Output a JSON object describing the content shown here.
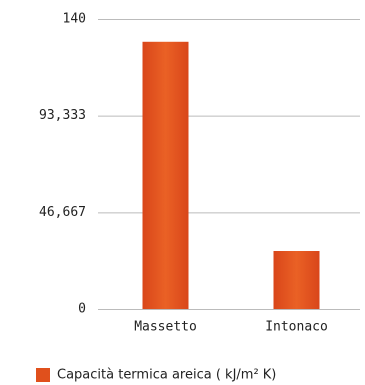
{
  "chart_data": {
    "type": "bar",
    "categories": [
      "Massetto",
      "Intonaco"
    ],
    "series": [
      {
        "name": "Capacità termica areica ( kJ/m² K)",
        "color": "#e0501c",
        "values": [
          129,
          28
        ]
      }
    ],
    "ylim": [
      0,
      140
    ],
    "yticks": [
      0,
      {
        "value": 46.667,
        "label": "46,667"
      },
      {
        "value": 93.333,
        "label": "93,333"
      },
      140
    ],
    "grid": true,
    "legend": "bottom"
  }
}
